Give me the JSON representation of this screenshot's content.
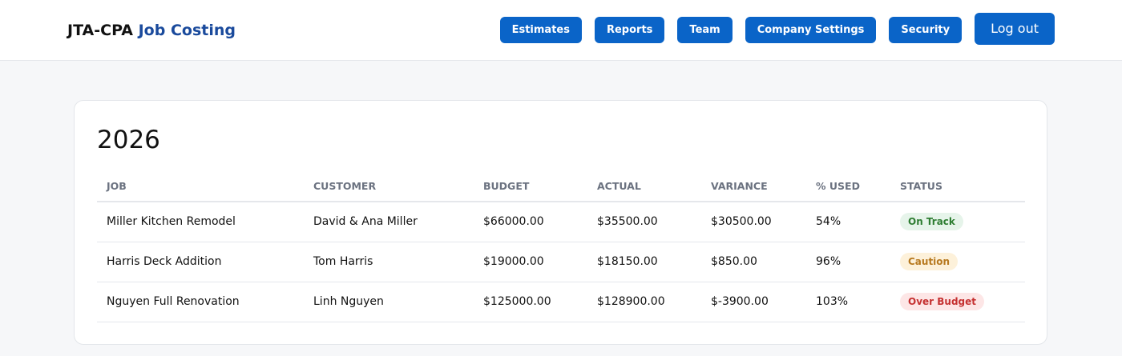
{
  "header": {
    "brand": "JTA-CPA",
    "brand_accent": "Job Costing",
    "nav": [
      "Estimates",
      "Reports",
      "Team",
      "Company Settings",
      "Security"
    ],
    "logout": "Log out"
  },
  "card": {
    "title": "2026"
  },
  "table": {
    "columns": [
      "JOB",
      "CUSTOMER",
      "BUDGET",
      "ACTUAL",
      "VARIANCE",
      "% USED",
      "STATUS"
    ],
    "rows": [
      [
        "Miller Kitchen Remodel",
        "David & Ana Miller",
        "$66000.00",
        "$35500.00",
        "$30500.00",
        "54%",
        "On Track"
      ],
      [
        "Harris Deck Addition",
        "Tom Harris",
        "$19000.00",
        "$18150.00",
        "$850.00",
        "96%",
        "Caution"
      ],
      [
        "Nguyen Full Renovation",
        "Linh Nguyen",
        "$125000.00",
        "$128900.00",
        "$-3900.00",
        "103%",
        "Over Budget"
      ]
    ]
  }
}
